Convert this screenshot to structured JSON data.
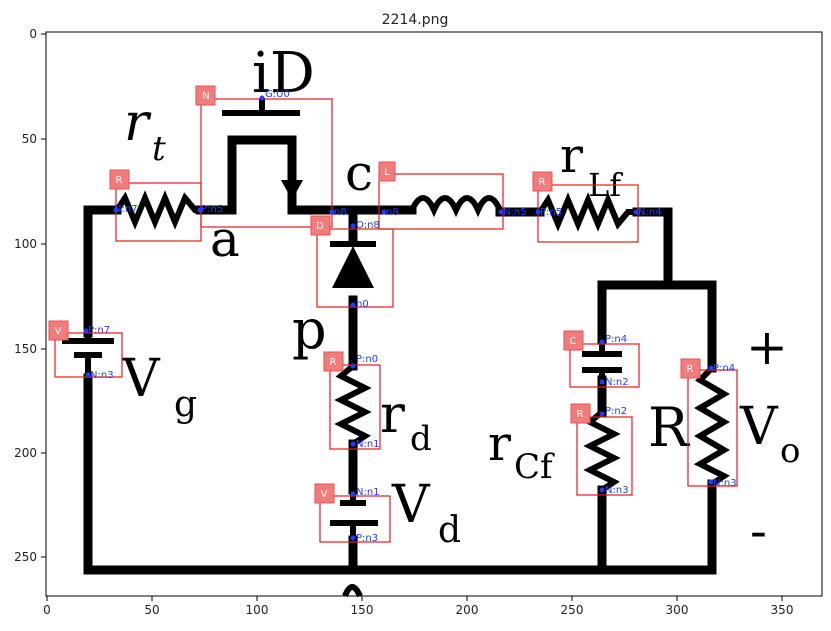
{
  "title": "2214.png",
  "x_ticks": [
    "0",
    "50",
    "100",
    "150",
    "200",
    "250",
    "300",
    "350"
  ],
  "y_ticks": [
    "0",
    "50",
    "100",
    "150",
    "200",
    "250"
  ],
  "handwritten": {
    "id": "iD",
    "rt": "r",
    "rt_sub": "t",
    "c": "c",
    "rlf": "r",
    "rlf_sub": "Lf",
    "a": "a",
    "p": "p",
    "vg": "V",
    "vg_sub": "g",
    "rd": "r",
    "rd_sub": "d",
    "vd": "V",
    "vd_sub": "d",
    "rcf": "r",
    "rcf_sub": "Cf",
    "R": "R",
    "vo": "V",
    "vo_sub": "o",
    "plus": "+",
    "minus": "-"
  },
  "components": [
    {
      "type": "N",
      "pins": [
        "G:U0"
      ]
    },
    {
      "type": "R",
      "pins": [
        "N:n7",
        "P:n5"
      ]
    },
    {
      "type": "L",
      "pins": [
        "n8",
        "N:n5"
      ]
    },
    {
      "type": "R",
      "pins": [
        "P:n5",
        "N:n4"
      ]
    },
    {
      "type": "D",
      "pins": [
        "n8",
        "O:n8",
        "n0"
      ]
    },
    {
      "type": "V",
      "pins": [
        "P:n7",
        "N:n3"
      ]
    },
    {
      "type": "R",
      "pins": [
        "P:n0",
        "N:n1"
      ]
    },
    {
      "type": "V",
      "pins": [
        "N:n1",
        "P:n3"
      ]
    },
    {
      "type": "C",
      "pins": [
        "P:n4",
        "N:n2"
      ]
    },
    {
      "type": "R",
      "pins": [
        "P:n2",
        "N:n3"
      ]
    },
    {
      "type": "R",
      "pins": [
        "P:n4",
        "N:n3"
      ]
    }
  ],
  "axis_range": {
    "x": [
      0,
      370
    ],
    "y": [
      0,
      270
    ]
  }
}
